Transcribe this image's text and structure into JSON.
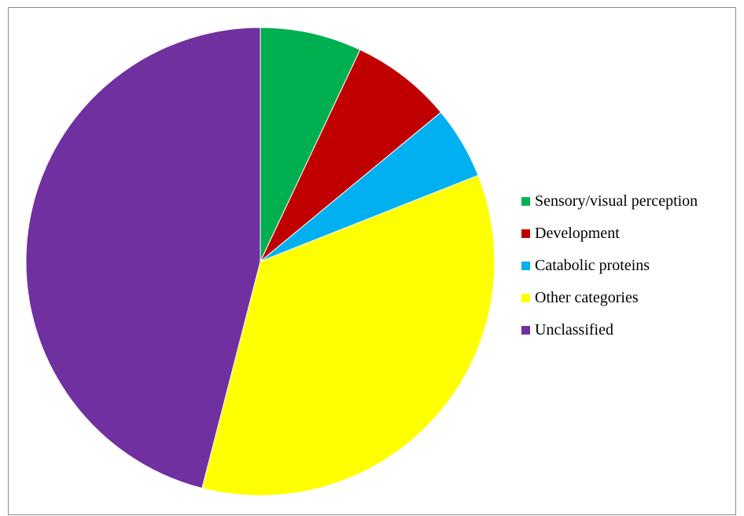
{
  "chart_data": {
    "type": "pie",
    "title": "",
    "start_angle_deg": 0,
    "direction": "clockwise",
    "categories": [
      "Sensory/visual perception",
      "Development",
      "Catabolic proteins",
      "Other categories",
      "Unclassified"
    ],
    "values": [
      7,
      7,
      5,
      35,
      46
    ],
    "colors": [
      "#00b050",
      "#c00000",
      "#00b0f0",
      "#ffff00",
      "#7030a0"
    ],
    "legend_position": "right"
  }
}
